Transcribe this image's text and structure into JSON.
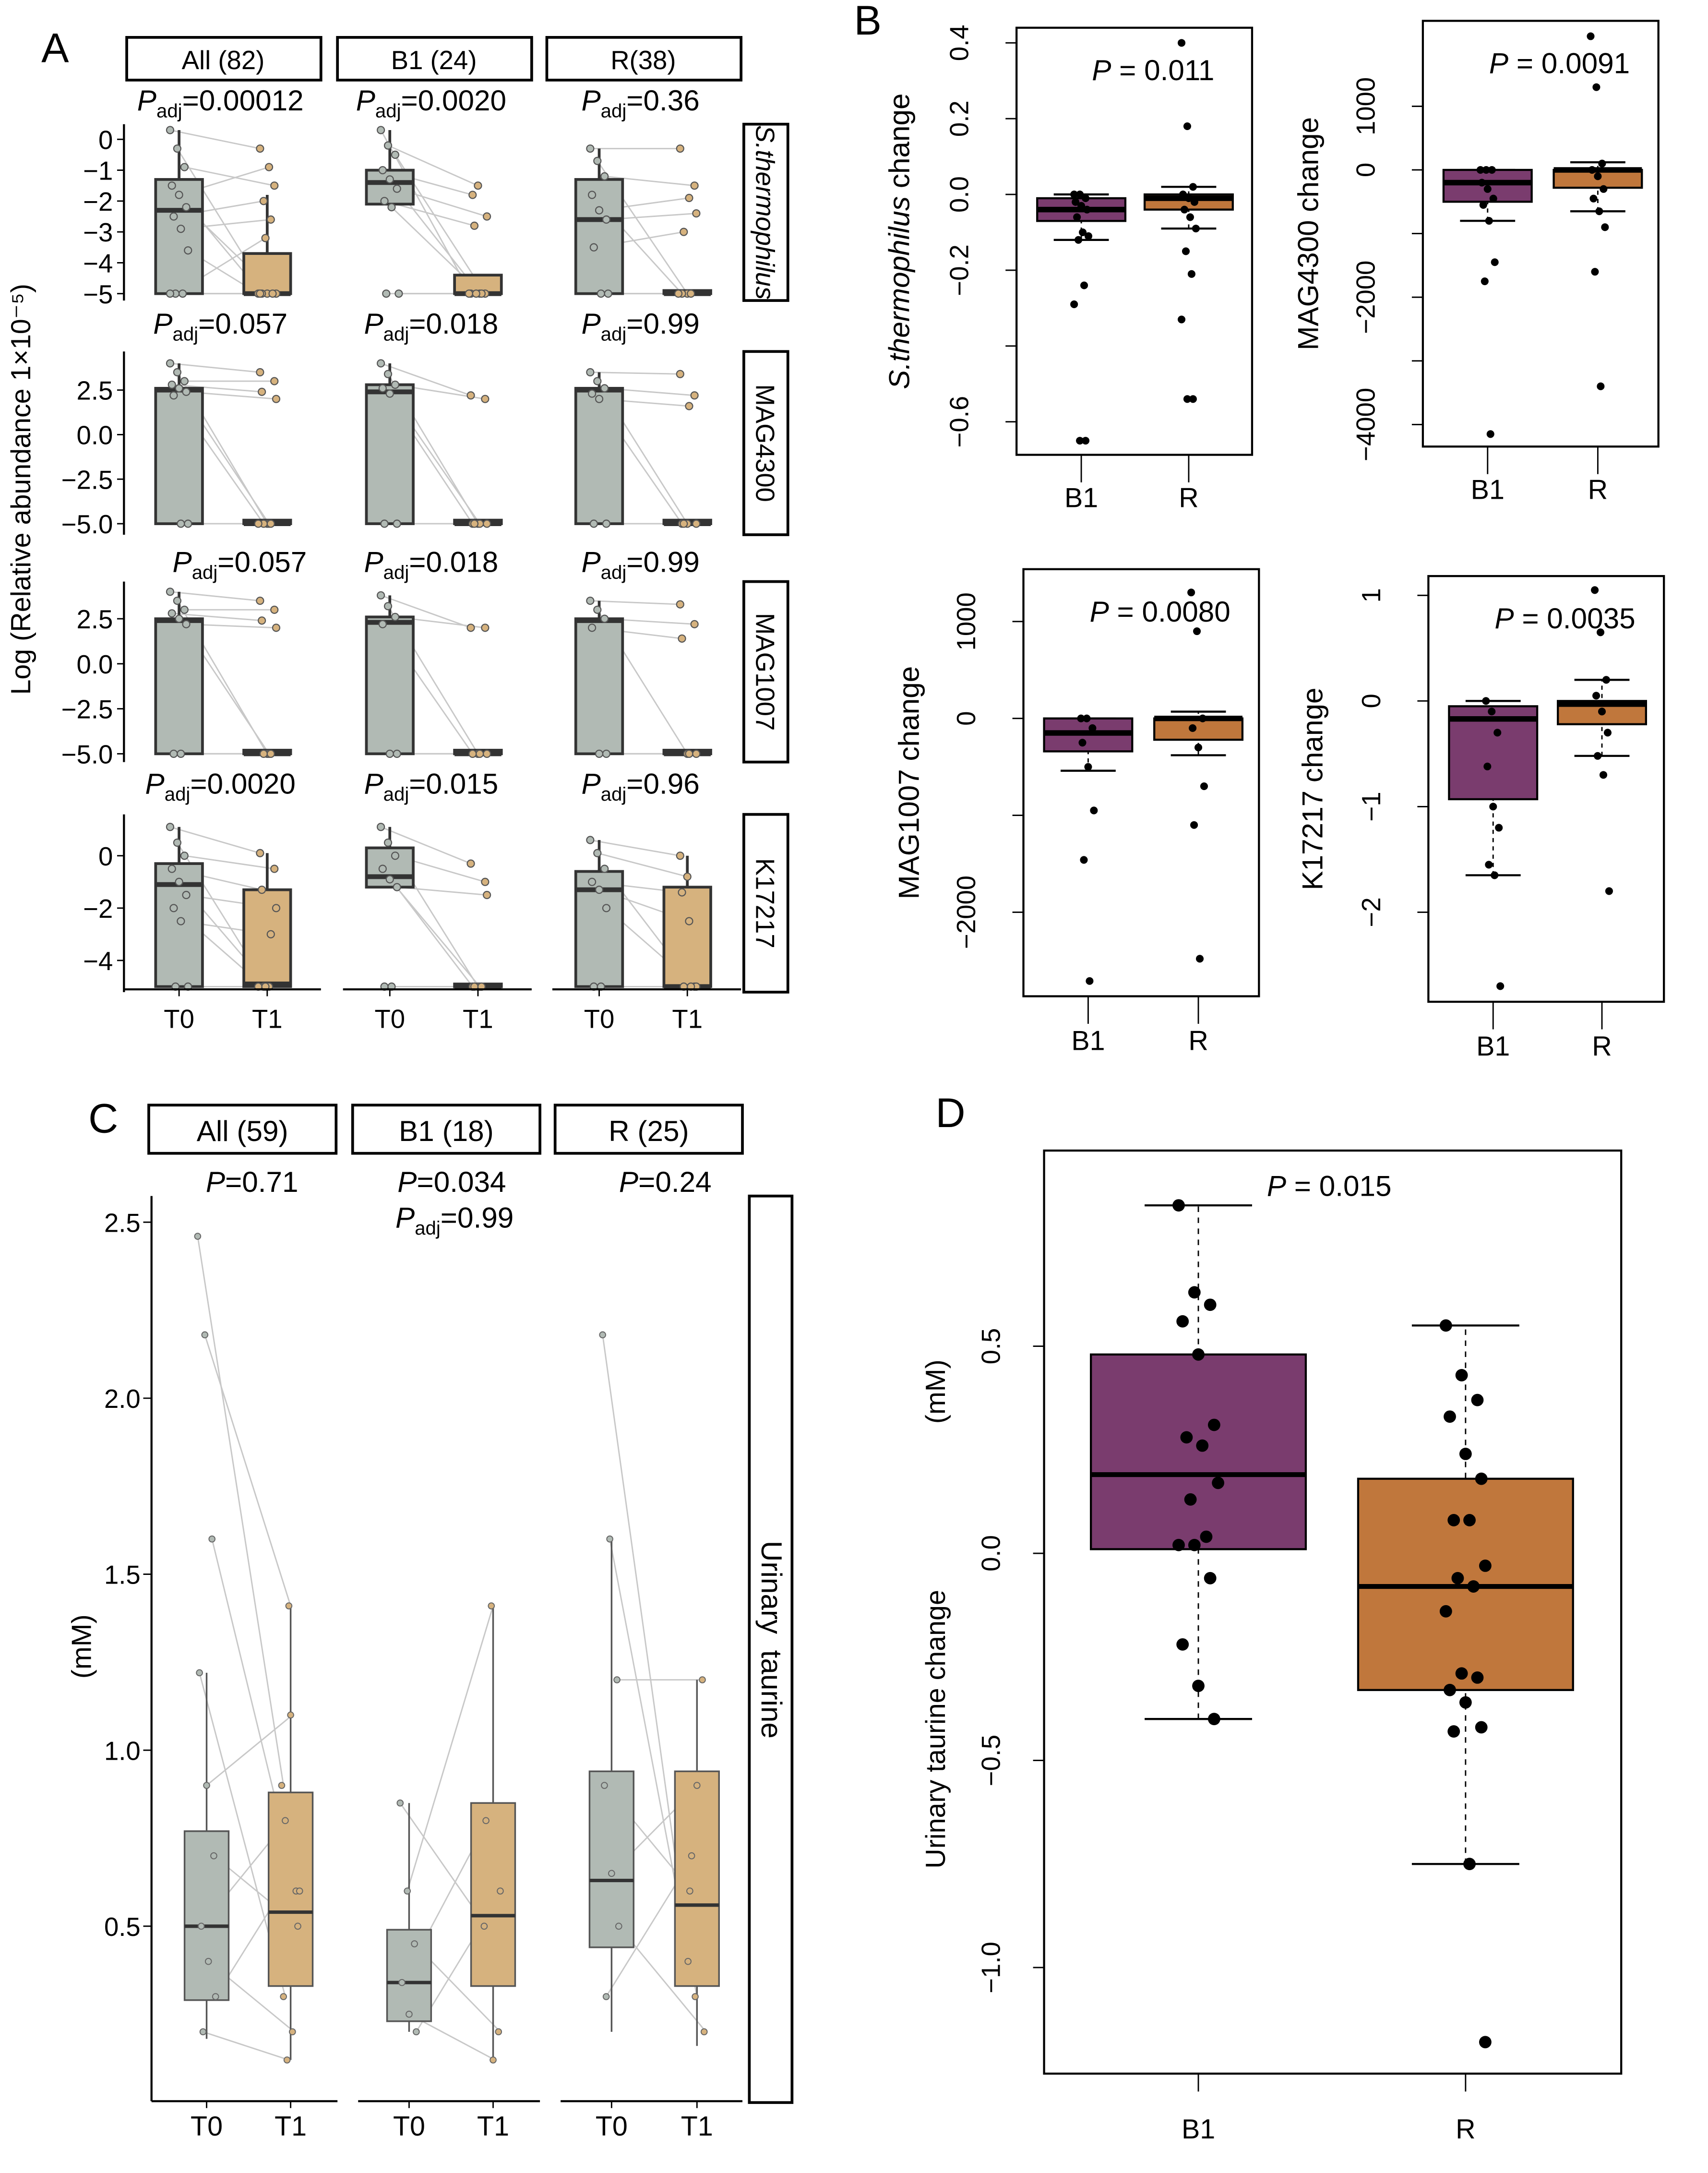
{
  "colors": {
    "t0": "#b1bab4",
    "t1": "#d6b27e",
    "b1": "#7a3c6e",
    "r": "#c0773c",
    "pair_line": "#c8c8c8",
    "box_stroke": "#333333"
  },
  "p_symbol": "P",
  "adj_sub": "adj",
  "chart_data": [
    {
      "panel": "A",
      "type": "box",
      "ylabel": "Log (Relative abundance 1×10⁻⁵)",
      "x_categories": [
        "T0",
        "T1"
      ],
      "facets": [
        "All (82)",
        "B1 (24)",
        "R(38)"
      ],
      "rows": [
        {
          "strip": "S.thermophilus",
          "ticks": [
            "0",
            "−1",
            "−2",
            "−3",
            "−4",
            "−5"
          ],
          "tick_values": [
            0,
            -1,
            -2,
            -3,
            -4,
            -5
          ],
          "p_adj": [
            "0.00012",
            "0.0020",
            "0.36"
          ],
          "boxes": [
            {
              "t0": [
                -5,
                -5,
                -2.3,
                -1.3,
                0.3
              ],
              "t1": [
                -5,
                -5,
                -5,
                -3.7,
                -1.8
              ],
              "p0": [
                0.3,
                -0.3,
                -0.9,
                -1.5,
                -1.8,
                -2.2,
                -2.5,
                -2.9,
                -3.6,
                -5,
                -5,
                -5
              ],
              "p1": [
                -0.3,
                -5,
                -1.5,
                -5,
                -0.9,
                -5,
                -2.0,
                -2.6,
                -5,
                -3.2,
                -5,
                -5
              ]
            },
            {
              "t0": [
                -2.2,
                -2.1,
                -1.4,
                -1.0,
                0.3
              ],
              "t1": [
                -5,
                -5,
                -5,
                -4.4,
                -4.4
              ],
              "p0": [
                0.3,
                -0.2,
                -0.5,
                -1.0,
                -1.3,
                -1.6,
                -2.0,
                -2.2,
                -5,
                -5
              ],
              "p1": [
                -5,
                -1.5,
                -5,
                -1.8,
                -5,
                -2.5,
                -2.8,
                -5,
                -5,
                -5
              ]
            },
            {
              "t0": [
                -5,
                -5,
                -2.6,
                -1.3,
                -0.3
              ],
              "t1": [
                -5,
                -5,
                -5,
                -4.9,
                -4.9
              ],
              "p0": [
                -0.3,
                -0.7,
                -1.2,
                -1.8,
                -2.3,
                -2.6,
                -3.5,
                -5,
                -5
              ],
              "p1": [
                -0.3,
                -5,
                -1.5,
                -5,
                -1.9,
                -2.4,
                -3.0,
                -5,
                -5
              ]
            }
          ]
        },
        {
          "strip": "MAG4300",
          "ticks": [
            "2.5",
            "0.0",
            "−2.5",
            "−5.0"
          ],
          "tick_values": [
            2.5,
            0,
            -2.5,
            -5
          ],
          "p_adj": [
            "0.057",
            "0.018",
            "0.99"
          ],
          "boxes": [
            {
              "t0": [
                -5,
                -5,
                2.5,
                2.6,
                4.0
              ],
              "t1": [
                -5,
                -5,
                -5,
                -4.8,
                -4.8
              ],
              "p0": [
                4.0,
                3.5,
                3.0,
                2.8,
                2.6,
                2.4,
                2.2,
                -5,
                -5
              ],
              "p1": [
                3.5,
                -5,
                3.0,
                2.4,
                -5,
                2.0,
                -5,
                -5,
                -5
              ]
            },
            {
              "t0": [
                -5,
                -5,
                2.4,
                2.8,
                4.0
              ],
              "t1": [
                -5,
                -5,
                -5,
                -4.8,
                -4.8
              ],
              "p0": [
                4.0,
                3.4,
                2.8,
                2.6,
                2.3,
                -5,
                -5
              ],
              "p1": [
                2.2,
                -5,
                2.0,
                -5,
                -5,
                -5,
                -5
              ]
            },
            {
              "t0": [
                -5,
                -5,
                2.5,
                2.6,
                3.5
              ],
              "t1": [
                -5,
                -5,
                -5,
                -4.8,
                -4.8
              ],
              "p0": [
                3.5,
                3.0,
                2.6,
                2.3,
                2.0,
                -5,
                -5
              ],
              "p1": [
                3.4,
                -5,
                2.2,
                -5,
                1.6,
                -5,
                -5
              ]
            }
          ]
        },
        {
          "strip": "MAG1007",
          "ticks": [
            "2.5",
            "0.0",
            "−2.5",
            "−5.0"
          ],
          "tick_values": [
            2.5,
            0,
            -2.5,
            -5
          ],
          "p_adj": [
            "0.057",
            "0.018",
            "0.99"
          ],
          "boxes": [
            {
              "t0": [
                -5,
                -5,
                2.4,
                2.5,
                4.0
              ],
              "t1": [
                -5,
                -5,
                -5,
                -4.8,
                -4.8
              ],
              "p0": [
                4.0,
                3.5,
                3.0,
                2.8,
                2.5,
                2.2,
                -5,
                -5
              ],
              "p1": [
                3.5,
                -5,
                3.0,
                2.4,
                -5,
                2.0,
                -5,
                -5
              ]
            },
            {
              "t0": [
                -5,
                -5,
                2.3,
                2.6,
                3.8
              ],
              "t1": [
                -5,
                -5,
                -5,
                -4.8,
                -4.8
              ],
              "p0": [
                3.8,
                3.2,
                2.6,
                2.2,
                -5,
                -5
              ],
              "p1": [
                2.0,
                -5,
                2.0,
                -5,
                -5,
                -5
              ]
            },
            {
              "t0": [
                -5,
                -5,
                2.4,
                2.5,
                3.5
              ],
              "t1": [
                -5,
                -5,
                -5,
                -4.8,
                -4.8
              ],
              "p0": [
                3.5,
                3.0,
                2.5,
                2.0,
                -5,
                -5
              ],
              "p1": [
                3.3,
                -5,
                2.2,
                1.4,
                -5,
                -5
              ]
            }
          ]
        },
        {
          "strip": "K17217",
          "ticks": [
            "0",
            "−2",
            "−4"
          ],
          "tick_values": [
            0,
            -2,
            -4
          ],
          "p_adj": [
            "0.0020",
            "0.015",
            "0.96"
          ],
          "boxes": [
            {
              "t0": [
                -5,
                -5,
                -1.1,
                -0.3,
                1.1
              ],
              "t1": [
                -5,
                -5,
                -4.9,
                -1.3,
                0.1
              ],
              "p0": [
                1.1,
                0.5,
                0,
                -0.5,
                -1.0,
                -1.5,
                -2.0,
                -2.5,
                -5,
                -5
              ],
              "p1": [
                0.1,
                -5,
                -0.5,
                -1.3,
                -5,
                -2.0,
                -5,
                -3.0,
                -5,
                -5
              ]
            },
            {
              "t0": [
                -1.2,
                -1.2,
                -0.8,
                0.3,
                1.1
              ],
              "t1": [
                -5,
                -5,
                -5,
                -4.9,
                -4.9
              ],
              "p0": [
                1.1,
                0.5,
                0,
                -0.5,
                -0.9,
                -1.2,
                -5,
                -5
              ],
              "p1": [
                -0.3,
                -5,
                -1.0,
                -5,
                -5,
                -1.5,
                -5,
                -5
              ]
            },
            {
              "t0": [
                -5,
                -5,
                -1.3,
                -0.6,
                0.6
              ],
              "t1": [
                -5,
                -5,
                -5,
                -1.2,
                0.0
              ],
              "p0": [
                0.6,
                0.1,
                -0.5,
                -1.0,
                -1.3,
                -2.0,
                -5,
                -5
              ],
              "p1": [
                0.0,
                -0.8,
                -5,
                -1.4,
                -2.5,
                -5,
                -5,
                -5
              ]
            }
          ]
        }
      ]
    },
    {
      "panel": "B",
      "type": "box",
      "plots": [
        {
          "ylabel": "S.thermophilus change",
          "italic_part": "S.thermophilus",
          "ylabel_rest": " change",
          "p": "0.011",
          "ticks": [
            "0.4",
            "0.2",
            "0.0",
            "−0.2",
            "−0.6"
          ],
          "tick_values": [
            0.4,
            0.2,
            0,
            -0.2,
            -0.6
          ],
          "all_tick_values": [
            0.4,
            0.2,
            0,
            -0.2,
            -0.4,
            -0.6
          ],
          "categories": [
            "B1",
            "R"
          ],
          "boxes": [
            [
              -0.12,
              -0.07,
              -0.04,
              -0.01,
              0
            ],
            [
              -0.09,
              -0.04,
              -0.01,
              0,
              0.02
            ]
          ],
          "points": [
            [
              0,
              0,
              -0.01,
              -0.02,
              -0.03,
              -0.04,
              -0.06,
              -0.1,
              -0.11,
              -0.12,
              -0.24,
              -0.29,
              -0.65,
              -0.65
            ],
            [
              0.4,
              0.18,
              0.02,
              0,
              -0.01,
              -0.02,
              -0.04,
              -0.06,
              -0.09,
              -0.15,
              -0.21,
              -0.33,
              -0.54,
              -0.54
            ]
          ]
        },
        {
          "ylabel": "MAG4300 change",
          "p": "0.0091",
          "ticks": [
            "1000",
            "0",
            "−2000",
            "−4000"
          ],
          "tick_values": [
            1000,
            0,
            -2000,
            -4000
          ],
          "all_tick_values": [
            1000,
            0,
            -1000,
            -2000,
            -3000,
            -4000
          ],
          "categories": [
            "B1",
            "R"
          ],
          "boxes": [
            [
              -800,
              -500,
              -200,
              0,
              0
            ],
            [
              -650,
              -280,
              0,
              0,
              120
            ]
          ],
          "points": [
            [
              0,
              0,
              0,
              -200,
              -300,
              -450,
              -550,
              -800,
              -1450,
              -1750,
              -4150
            ],
            [
              2100,
              1300,
              100,
              0,
              -100,
              -300,
              -450,
              -650,
              -900,
              -1600,
              -3400
            ]
          ]
        },
        {
          "ylabel": "MAG1007 change",
          "p": "0.0080",
          "ticks": [
            "1000",
            "0",
            "−2000"
          ],
          "tick_values": [
            1000,
            0,
            -2000
          ],
          "all_tick_values": [
            1000,
            0,
            -1000,
            -2000
          ],
          "categories": [
            "B1",
            "R"
          ],
          "boxes": [
            [
              -540,
              -340,
              -150,
              0,
              0
            ],
            [
              -380,
              -220,
              0,
              0,
              70
            ]
          ],
          "points": [
            [
              0,
              0,
              -100,
              -250,
              -500,
              -950,
              -1460,
              -2710
            ],
            [
              1300,
              900,
              0,
              -100,
              -300,
              -700,
              -1100,
              -2480
            ]
          ]
        },
        {
          "ylabel": "K17217 change",
          "p": "0.0035",
          "ticks": [
            "1",
            "0",
            "−1",
            "−2"
          ],
          "tick_values": [
            1,
            0,
            -1,
            -2
          ],
          "all_tick_values": [
            1,
            0,
            -1,
            -2
          ],
          "categories": [
            "B1",
            "R"
          ],
          "boxes": [
            [
              -1.65,
              -0.93,
              -0.17,
              -0.05,
              0
            ],
            [
              -0.52,
              -0.22,
              -0.03,
              0,
              0.2
            ]
          ],
          "points": [
            [
              0,
              -0.1,
              -0.3,
              -0.62,
              -1.0,
              -1.2,
              -1.55,
              -1.65,
              -2.7
            ],
            [
              1.05,
              0.65,
              0.2,
              0.05,
              -0.1,
              -0.3,
              -0.52,
              -0.7,
              -1.8
            ]
          ]
        }
      ]
    },
    {
      "panel": "C",
      "type": "box",
      "ylabel": "(mM)",
      "strip": "Urinary  taurine",
      "x_categories": [
        "T0",
        "T1"
      ],
      "facets": [
        "All (59)",
        "B1 (18)",
        "R (25)"
      ],
      "p": [
        "0.71",
        "0.034",
        "0.24"
      ],
      "p_adj_b1": "0.99",
      "ticks": [
        "2.5",
        "2.0",
        "1.5",
        "1.0",
        "0.5"
      ],
      "tick_values": [
        2.5,
        2.0,
        1.5,
        1.0,
        0.5
      ],
      "boxes": [
        {
          "t0": [
            0.18,
            0.29,
            0.5,
            0.77,
            1.22
          ],
          "t1": [
            0.12,
            0.33,
            0.54,
            0.88,
            1.41
          ],
          "p0": [
            2.46,
            2.18,
            1.6,
            1.22,
            0.9,
            0.7,
            0.5,
            0.4,
            0.3,
            0.2
          ],
          "p1": [
            0.9,
            1.41,
            0.6,
            0.3,
            1.1,
            0.5,
            0.8,
            0.2,
            0.6,
            0.12
          ]
        },
        {
          "t0": [
            0.2,
            0.23,
            0.34,
            0.49,
            0.85
          ],
          "t1": [
            0.12,
            0.33,
            0.53,
            0.85,
            1.41
          ],
          "p0": [
            0.85,
            0.6,
            0.45,
            0.34,
            0.25,
            0.2
          ],
          "p1": [
            0.5,
            1.41,
            0.2,
            0.8,
            0.12,
            0.6
          ]
        },
        {
          "t0": [
            0.2,
            0.44,
            0.63,
            0.94,
            1.6
          ],
          "t1": [
            0.16,
            0.33,
            0.56,
            0.94,
            1.2
          ],
          "p0": [
            2.18,
            1.6,
            1.2,
            0.9,
            0.65,
            0.5,
            0.3
          ],
          "p1": [
            0.4,
            0.3,
            1.2,
            0.6,
            0.9,
            0.2,
            0.7
          ]
        }
      ]
    },
    {
      "panel": "D",
      "type": "box",
      "ylabel": "Urinary taurine change",
      "ylabel2": "(mM)",
      "p": "0.015",
      "categories": [
        "B1",
        "R"
      ],
      "ticks": [
        "0.5",
        "0.0",
        "−0.5",
        "−1.0"
      ],
      "tick_values": [
        0.5,
        0,
        -0.5,
        -1.0
      ],
      "boxes": [
        [
          -0.4,
          0.01,
          0.19,
          0.48,
          0.84
        ],
        [
          -0.75,
          -0.33,
          -0.08,
          0.18,
          0.55
        ]
      ],
      "points": [
        [
          0.84,
          0.63,
          0.6,
          0.56,
          0.48,
          0.31,
          0.28,
          0.26,
          0.17,
          0.13,
          0.04,
          0.02,
          0.02,
          -0.06,
          -0.22,
          -0.32,
          -0.4
        ],
        [
          0.55,
          0.43,
          0.37,
          0.33,
          0.24,
          0.18,
          0.08,
          0.08,
          -0.03,
          -0.06,
          -0.08,
          -0.14,
          -0.29,
          -0.3,
          -0.33,
          -0.36,
          -0.42,
          -0.43,
          -0.75,
          -1.18
        ]
      ]
    }
  ],
  "panel_labels": [
    "A",
    "B",
    "C",
    "D"
  ]
}
